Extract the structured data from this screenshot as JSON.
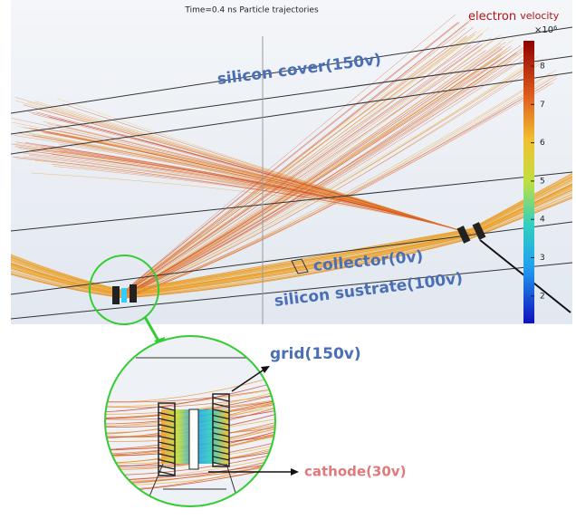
{
  "title": "Time=0.4 ns  Particle trajectories",
  "legend": {
    "label_main": "electron",
    "label_unit": "velocity",
    "multiplier": "×10⁶",
    "ticks": [
      8,
      7,
      6,
      5,
      4,
      3,
      2
    ]
  },
  "labels": {
    "cover": "silicon cover(150v)",
    "collector": "collector(0v)",
    "substrate": "silicon sustrate(100v)"
  },
  "callouts": {
    "grid": "grid(150v)",
    "cathode": "cathode(30v)"
  }
}
